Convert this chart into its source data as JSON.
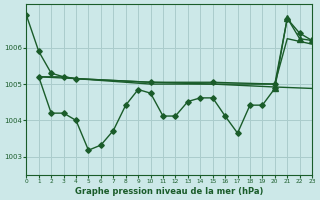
{
  "bg_color": "#cce8e8",
  "grid_color": "#aacccc",
  "line_color": "#1a5c2a",
  "title": "Graphe pression niveau de la mer (hPa)",
  "xlim": [
    0,
    23
  ],
  "ylim": [
    1002.5,
    1007.2
  ],
  "yticks": [
    1003,
    1004,
    1005,
    1006
  ],
  "xticks": [
    0,
    1,
    2,
    3,
    4,
    5,
    6,
    7,
    8,
    9,
    10,
    11,
    12,
    13,
    14,
    15,
    16,
    17,
    18,
    19,
    20,
    21,
    22,
    23
  ],
  "line1": {
    "x": [
      0,
      1,
      2,
      3,
      4,
      10,
      15,
      20,
      21,
      22,
      23
    ],
    "y": [
      1006.9,
      1005.9,
      1005.3,
      1005.2,
      1005.15,
      1005.05,
      1005.05,
      1005.0,
      1006.8,
      1006.4,
      1006.2
    ]
  },
  "line2": {
    "x": [
      1,
      2,
      3,
      4,
      10,
      15,
      20,
      23
    ],
    "y": [
      1005.2,
      1005.2,
      1005.2,
      1005.15,
      1005.05,
      1005.0,
      1004.92,
      1004.88
    ]
  },
  "line3": {
    "x": [
      1,
      4,
      10,
      11,
      12,
      20,
      21,
      23
    ],
    "y": [
      1005.2,
      1005.15,
      1005.0,
      1005.0,
      1005.0,
      1005.0,
      1006.25,
      1006.1
    ]
  },
  "line4": {
    "x": [
      1,
      2,
      3,
      4,
      5,
      6,
      7,
      8,
      9,
      10,
      11,
      12,
      13,
      14,
      15,
      16,
      17,
      18,
      19,
      20
    ],
    "y": [
      1005.2,
      1004.2,
      1004.2,
      1004.0,
      1003.18,
      1003.32,
      1003.72,
      1004.42,
      1004.85,
      1004.75,
      1004.12,
      1004.12,
      1004.52,
      1004.62,
      1004.62,
      1004.12,
      1003.65,
      1004.42,
      1004.42,
      1004.88
    ]
  },
  "line5": {
    "x": [
      20,
      21,
      22,
      23
    ],
    "y": [
      1004.88,
      1006.82,
      1006.25,
      1006.2
    ]
  }
}
